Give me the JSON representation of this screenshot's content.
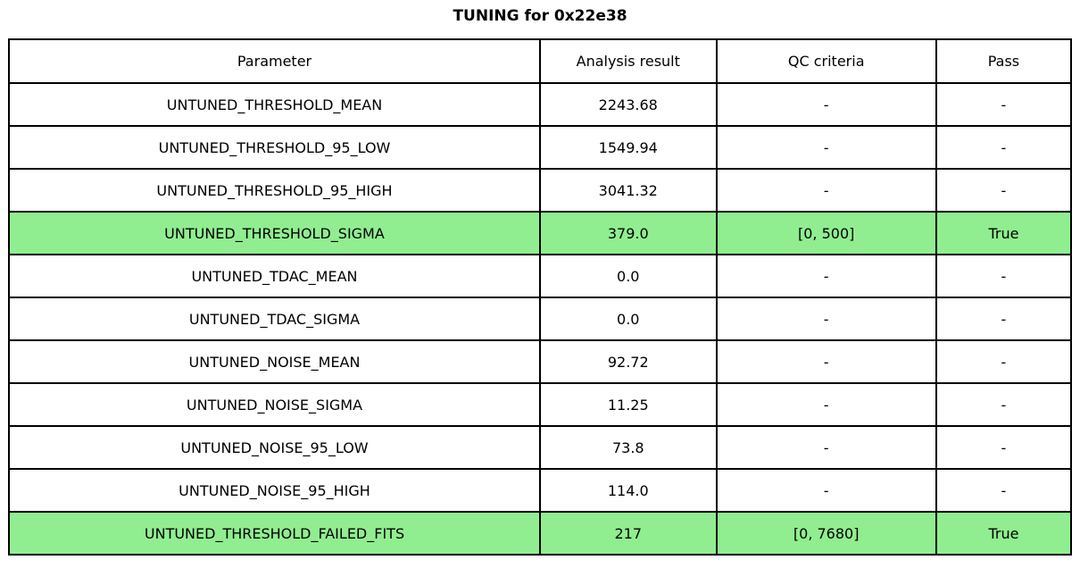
{
  "page": {
    "title": "TUNING for 0x22e38"
  },
  "colors": {
    "highlight_green": "#90ee90",
    "border": "#000000",
    "background": "#ffffff",
    "text": "#000000"
  },
  "table": {
    "headers": [
      "Parameter",
      "Analysis result",
      "QC criteria",
      "Pass"
    ],
    "rows": [
      {
        "parameter": "UNTUNED_THRESHOLD_MEAN",
        "analysis_result": "2243.68",
        "qc_criteria": "-",
        "pass": "-",
        "highlight": false
      },
      {
        "parameter": "UNTUNED_THRESHOLD_95_LOW",
        "analysis_result": "1549.94",
        "qc_criteria": "-",
        "pass": "-",
        "highlight": false
      },
      {
        "parameter": "UNTUNED_THRESHOLD_95_HIGH",
        "analysis_result": "3041.32",
        "qc_criteria": "-",
        "pass": "-",
        "highlight": false
      },
      {
        "parameter": "UNTUNED_THRESHOLD_SIGMA",
        "analysis_result": "379.0",
        "qc_criteria": "[0, 500]",
        "pass": "True",
        "highlight": true
      },
      {
        "parameter": "UNTUNED_TDAC_MEAN",
        "analysis_result": "0.0",
        "qc_criteria": "-",
        "pass": "-",
        "highlight": false
      },
      {
        "parameter": "UNTUNED_TDAC_SIGMA",
        "analysis_result": "0.0",
        "qc_criteria": "-",
        "pass": "-",
        "highlight": false
      },
      {
        "parameter": "UNTUNED_NOISE_MEAN",
        "analysis_result": "92.72",
        "qc_criteria": "-",
        "pass": "-",
        "highlight": false
      },
      {
        "parameter": "UNTUNED_NOISE_SIGMA",
        "analysis_result": "11.25",
        "qc_criteria": "-",
        "pass": "-",
        "highlight": false
      },
      {
        "parameter": "UNTUNED_NOISE_95_LOW",
        "analysis_result": "73.8",
        "qc_criteria": "-",
        "pass": "-",
        "highlight": false
      },
      {
        "parameter": "UNTUNED_NOISE_95_HIGH",
        "analysis_result": "114.0",
        "qc_criteria": "-",
        "pass": "-",
        "highlight": false
      },
      {
        "parameter": "UNTUNED_THRESHOLD_FAILED_FITS",
        "analysis_result": "217",
        "qc_criteria": "[0, 7680]",
        "pass": "True",
        "highlight": true
      }
    ]
  },
  "chart_data": {
    "type": "table",
    "title": "TUNING for 0x22e38",
    "columns": [
      "Parameter",
      "Analysis result",
      "QC criteria",
      "Pass"
    ],
    "rows": [
      [
        "UNTUNED_THRESHOLD_MEAN",
        "2243.68",
        "-",
        "-"
      ],
      [
        "UNTUNED_THRESHOLD_95_LOW",
        "1549.94",
        "-",
        "-"
      ],
      [
        "UNTUNED_THRESHOLD_95_HIGH",
        "3041.32",
        "-",
        "-"
      ],
      [
        "UNTUNED_THRESHOLD_SIGMA",
        "379.0",
        "[0, 500]",
        "True"
      ],
      [
        "UNTUNED_TDAC_MEAN",
        "0.0",
        "-",
        "-"
      ],
      [
        "UNTUNED_TDAC_SIGMA",
        "0.0",
        "-",
        "-"
      ],
      [
        "UNTUNED_NOISE_MEAN",
        "92.72",
        "-",
        "-"
      ],
      [
        "UNTUNED_NOISE_SIGMA",
        "11.25",
        "-",
        "-"
      ],
      [
        "UNTUNED_NOISE_95_LOW",
        "73.8",
        "-",
        "-"
      ],
      [
        "UNTUNED_NOISE_95_HIGH",
        "114.0",
        "-",
        "-"
      ],
      [
        "UNTUNED_THRESHOLD_FAILED_FITS",
        "217",
        "[0, 7680]",
        "True"
      ]
    ],
    "highlighted_row_indices": [
      3,
      10
    ],
    "highlight_color": "#90ee90",
    "layout": {
      "grid": true,
      "legend": false,
      "title_position": "top-center"
    }
  }
}
